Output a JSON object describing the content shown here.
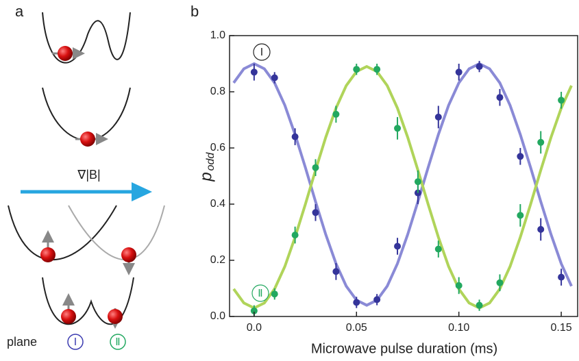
{
  "panel_a": {
    "label": "a",
    "arrow_label": "∇|B|",
    "legend_word": "plane",
    "plane_1": "Ⅰ",
    "plane_2": "Ⅱ"
  },
  "chart_data": {
    "type": "scatter",
    "panel_label": "b",
    "x_label": "Microwave pulse duration (ms)",
    "y_label": "p",
    "y_label_sub": "odd",
    "annotations": [
      "Ⅰ",
      "Ⅱ"
    ],
    "xlim": [
      -0.012,
      0.158
    ],
    "ylim": [
      0,
      1
    ],
    "xticks": [
      {
        "value": 0,
        "label": "0.0"
      },
      0.05,
      {
        "value": 0.1,
        "label": "0.10"
      },
      0.15
    ],
    "yticks": [
      {
        "value": 0,
        "label": "0.0"
      },
      0.2,
      0.4,
      0.6,
      0.8,
      {
        "value": 1,
        "label": "1.0"
      }
    ],
    "series": [
      {
        "type": "line",
        "color": "#8a8ad6",
        "x": [
          -0.01,
          -0.005,
          0,
          0.005,
          0.01,
          0.015,
          0.02,
          0.025,
          0.03,
          0.035,
          0.04,
          0.045,
          0.05,
          0.055,
          0.06,
          0.065,
          0.07,
          0.075,
          0.08,
          0.085,
          0.09,
          0.095,
          0.1,
          0.105,
          0.11,
          0.115,
          0.12,
          0.125,
          0.13,
          0.135,
          0.14,
          0.145,
          0.15,
          0.155
        ],
        "values": [
          0.832,
          0.882,
          0.9,
          0.882,
          0.832,
          0.752,
          0.648,
          0.531,
          0.409,
          0.292,
          0.188,
          0.108,
          0.058,
          0.04,
          0.058,
          0.108,
          0.188,
          0.292,
          0.409,
          0.531,
          0.648,
          0.752,
          0.832,
          0.882,
          0.9,
          0.882,
          0.832,
          0.752,
          0.648,
          0.531,
          0.409,
          0.292,
          0.188,
          0.108
        ]
      },
      {
        "type": "line",
        "color": "#b0d45a",
        "x": [
          -0.01,
          -0.005,
          0,
          0.005,
          0.01,
          0.015,
          0.02,
          0.025,
          0.03,
          0.035,
          0.04,
          0.045,
          0.05,
          0.055,
          0.06,
          0.065,
          0.07,
          0.075,
          0.08,
          0.085,
          0.09,
          0.095,
          0.1,
          0.105,
          0.11,
          0.115,
          0.12,
          0.125,
          0.13,
          0.135,
          0.14,
          0.145,
          0.15,
          0.155
        ],
        "values": [
          0.098,
          0.048,
          0.03,
          0.048,
          0.098,
          0.178,
          0.282,
          0.399,
          0.521,
          0.638,
          0.742,
          0.822,
          0.872,
          0.89,
          0.872,
          0.822,
          0.742,
          0.638,
          0.521,
          0.399,
          0.282,
          0.178,
          0.098,
          0.048,
          0.03,
          0.048,
          0.098,
          0.178,
          0.282,
          0.399,
          0.521,
          0.638,
          0.742,
          0.822
        ]
      },
      {
        "type": "scatter",
        "color": "#34349a",
        "x": [
          0,
          0.01,
          0.02,
          0.03,
          0.04,
          0.05,
          0.06,
          0.07,
          0.08,
          0.09,
          0.1,
          0.11,
          0.12,
          0.13,
          0.14,
          0.15
        ],
        "values": [
          0.87,
          0.85,
          0.64,
          0.37,
          0.16,
          0.05,
          0.06,
          0.25,
          0.44,
          0.71,
          0.87,
          0.89,
          0.78,
          0.57,
          0.31,
          0.14
        ],
        "errors": [
          0.03,
          0.02,
          0.03,
          0.03,
          0.03,
          0.02,
          0.02,
          0.03,
          0.04,
          0.04,
          0.03,
          0.02,
          0.03,
          0.03,
          0.04,
          0.03
        ]
      },
      {
        "type": "scatter",
        "color": "#22a860",
        "x": [
          0,
          0.01,
          0.02,
          0.03,
          0.04,
          0.05,
          0.06,
          0.07,
          0.08,
          0.09,
          0.1,
          0.11,
          0.12,
          0.13,
          0.14,
          0.15
        ],
        "values": [
          0.02,
          0.08,
          0.29,
          0.53,
          0.72,
          0.88,
          0.88,
          0.67,
          0.48,
          0.24,
          0.11,
          0.04,
          0.12,
          0.36,
          0.62,
          0.77
        ],
        "errors": [
          0.02,
          0.02,
          0.03,
          0.03,
          0.03,
          0.02,
          0.02,
          0.04,
          0.04,
          0.03,
          0.03,
          0.02,
          0.03,
          0.04,
          0.04,
          0.03
        ]
      }
    ]
  }
}
